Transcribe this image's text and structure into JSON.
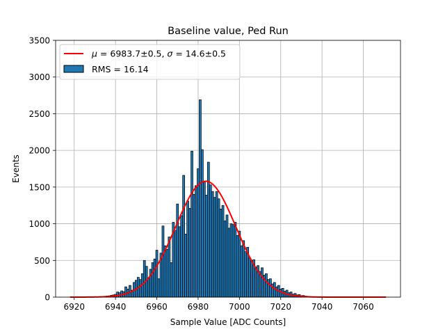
{
  "chart_data": {
    "type": "bar",
    "title": "Baseline value, Ped Run",
    "xlabel": "Sample Value [ADC Counts]",
    "ylabel": "Events",
    "xlim": [
      6911,
      7078
    ],
    "ylim": [
      0,
      3500
    ],
    "xticks": [
      6920,
      6940,
      6960,
      6980,
      7000,
      7020,
      7040,
      7060
    ],
    "yticks": [
      0,
      500,
      1000,
      1500,
      2000,
      2500,
      3000,
      3500
    ],
    "grid": true,
    "legend_position": "top-left",
    "bin_width": 1,
    "bins": [
      {
        "x": 6931,
        "y": 3
      },
      {
        "x": 6932,
        "y": 3
      },
      {
        "x": 6933,
        "y": 8
      },
      {
        "x": 6934,
        "y": 6
      },
      {
        "x": 6935,
        "y": 12
      },
      {
        "x": 6936,
        "y": 15
      },
      {
        "x": 6937,
        "y": 18
      },
      {
        "x": 6938,
        "y": 25
      },
      {
        "x": 6939,
        "y": 30
      },
      {
        "x": 6940,
        "y": 38
      },
      {
        "x": 6941,
        "y": 70
      },
      {
        "x": 6942,
        "y": 60
      },
      {
        "x": 6943,
        "y": 85
      },
      {
        "x": 6944,
        "y": 75
      },
      {
        "x": 6945,
        "y": 140
      },
      {
        "x": 6946,
        "y": 110
      },
      {
        "x": 6947,
        "y": 160
      },
      {
        "x": 6948,
        "y": 95
      },
      {
        "x": 6949,
        "y": 200
      },
      {
        "x": 6950,
        "y": 230
      },
      {
        "x": 6951,
        "y": 270
      },
      {
        "x": 6952,
        "y": 240
      },
      {
        "x": 6953,
        "y": 320
      },
      {
        "x": 6954,
        "y": 500
      },
      {
        "x": 6955,
        "y": 420
      },
      {
        "x": 6956,
        "y": 260
      },
      {
        "x": 6957,
        "y": 380
      },
      {
        "x": 6958,
        "y": 470
      },
      {
        "x": 6959,
        "y": 520
      },
      {
        "x": 6960,
        "y": 640
      },
      {
        "x": 6961,
        "y": 250
      },
      {
        "x": 6962,
        "y": 600
      },
      {
        "x": 6963,
        "y": 970
      },
      {
        "x": 6964,
        "y": 700
      },
      {
        "x": 6965,
        "y": 650
      },
      {
        "x": 6966,
        "y": 820
      },
      {
        "x": 6967,
        "y": 470
      },
      {
        "x": 6968,
        "y": 1020
      },
      {
        "x": 6969,
        "y": 910
      },
      {
        "x": 6970,
        "y": 1270
      },
      {
        "x": 6971,
        "y": 960
      },
      {
        "x": 6972,
        "y": 1110
      },
      {
        "x": 6973,
        "y": 1660
      },
      {
        "x": 6974,
        "y": 860
      },
      {
        "x": 6975,
        "y": 1310
      },
      {
        "x": 6976,
        "y": 1210
      },
      {
        "x": 6977,
        "y": 1990
      },
      {
        "x": 6978,
        "y": 1400
      },
      {
        "x": 6979,
        "y": 1520
      },
      {
        "x": 6980,
        "y": 1750
      },
      {
        "x": 6981,
        "y": 2690
      },
      {
        "x": 6982,
        "y": 2010
      },
      {
        "x": 6983,
        "y": 1570
      },
      {
        "x": 6984,
        "y": 1390
      },
      {
        "x": 6985,
        "y": 1840
      },
      {
        "x": 6986,
        "y": 1530
      },
      {
        "x": 6987,
        "y": 1440
      },
      {
        "x": 6988,
        "y": 1360
      },
      {
        "x": 6989,
        "y": 1440
      },
      {
        "x": 6990,
        "y": 1340
      },
      {
        "x": 6991,
        "y": 1200
      },
      {
        "x": 6992,
        "y": 1250
      },
      {
        "x": 6993,
        "y": 1040
      },
      {
        "x": 6994,
        "y": 1120
      },
      {
        "x": 6995,
        "y": 940
      },
      {
        "x": 6996,
        "y": 1000
      },
      {
        "x": 6997,
        "y": 990
      },
      {
        "x": 6998,
        "y": 1020
      },
      {
        "x": 6999,
        "y": 840
      },
      {
        "x": 7000,
        "y": 900
      },
      {
        "x": 7001,
        "y": 700
      },
      {
        "x": 7002,
        "y": 770
      },
      {
        "x": 7003,
        "y": 620
      },
      {
        "x": 7004,
        "y": 680
      },
      {
        "x": 7005,
        "y": 530
      },
      {
        "x": 7006,
        "y": 500
      },
      {
        "x": 7007,
        "y": 510
      },
      {
        "x": 7008,
        "y": 410
      },
      {
        "x": 7009,
        "y": 430
      },
      {
        "x": 7010,
        "y": 350
      },
      {
        "x": 7011,
        "y": 400
      },
      {
        "x": 7012,
        "y": 300
      },
      {
        "x": 7013,
        "y": 320
      },
      {
        "x": 7014,
        "y": 240
      },
      {
        "x": 7015,
        "y": 250
      },
      {
        "x": 7016,
        "y": 180
      },
      {
        "x": 7017,
        "y": 200
      },
      {
        "x": 7018,
        "y": 140
      },
      {
        "x": 7019,
        "y": 160
      },
      {
        "x": 7020,
        "y": 110
      },
      {
        "x": 7021,
        "y": 120
      },
      {
        "x": 7022,
        "y": 80
      },
      {
        "x": 7023,
        "y": 95
      },
      {
        "x": 7024,
        "y": 60
      },
      {
        "x": 7025,
        "y": 70
      },
      {
        "x": 7026,
        "y": 40
      },
      {
        "x": 7027,
        "y": 50
      },
      {
        "x": 7028,
        "y": 30
      },
      {
        "x": 7029,
        "y": 35
      },
      {
        "x": 7030,
        "y": 20
      },
      {
        "x": 7031,
        "y": 22
      },
      {
        "x": 7032,
        "y": 14
      },
      {
        "x": 7033,
        "y": 12
      },
      {
        "x": 7034,
        "y": 8
      },
      {
        "x": 7035,
        "y": 6
      },
      {
        "x": 7036,
        "y": 4
      },
      {
        "x": 7037,
        "y": 3
      },
      {
        "x": 7038,
        "y": 2
      }
    ],
    "fit": {
      "type": "gaussian",
      "mu": 6983.7,
      "sigma": 14.6,
      "amplitude": 1580,
      "x_range": [
        6918,
        7071
      ]
    },
    "series": [
      {
        "name": "$\\mu = 6983.7 \\pm 0.5$, $\\sigma = 14.6 \\pm 0.5$",
        "type": "line",
        "color": "#ff0000"
      },
      {
        "name": "RMS = 16.14",
        "type": "bar",
        "color": "#1f77b4",
        "edgecolor": "#000000"
      }
    ]
  },
  "legend": {
    "fit_label_mu": "μ",
    "fit_label_rest1": " = 6983.7±0.5, ",
    "fit_label_sigma": "σ",
    "fit_label_rest2": " = 14.6±0.5",
    "hist_label": "RMS = 16.14"
  },
  "colors": {
    "bar_fill": "#1f77b4",
    "bar_edge": "#000000",
    "fit_line": "#ff0000",
    "grid": "#b0b0b0"
  }
}
